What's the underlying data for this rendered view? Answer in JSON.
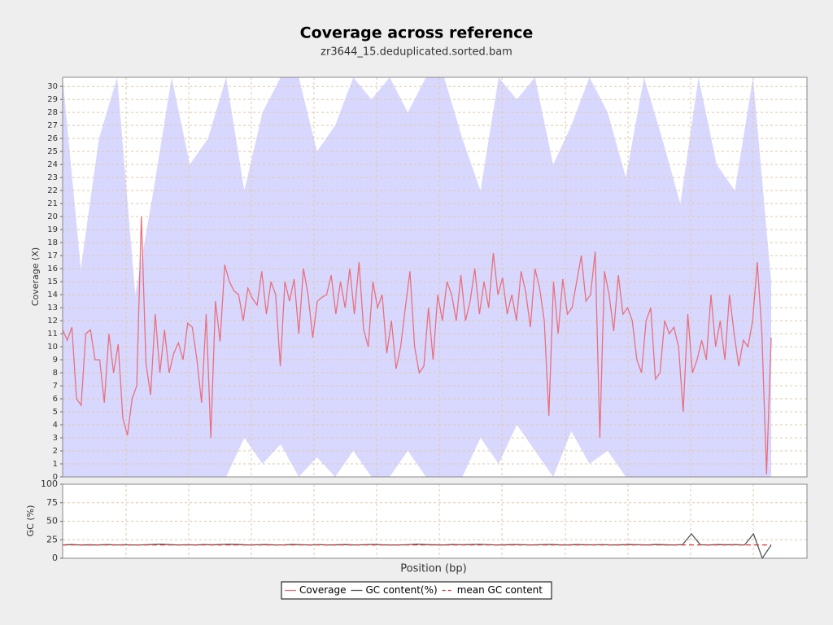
{
  "chart_data": [
    {
      "type": "line",
      "title": "Coverage across reference",
      "subtitle": "zr3644_15.deduplicated.sorted.bam",
      "ylabel": "Coverage (X)",
      "ylim": [
        0,
        30.7
      ],
      "yticks": [
        0,
        1,
        2,
        3,
        4,
        5,
        6,
        7,
        8,
        9,
        10,
        11,
        12,
        13,
        14,
        15,
        16,
        17,
        18,
        19,
        20,
        21,
        22,
        23,
        24,
        25,
        26,
        27,
        28,
        29,
        30
      ],
      "grid": true,
      "series": [
        {
          "name": "Coverage",
          "color": "#e8707e",
          "values": [
            11.3,
            10.5,
            11.5,
            6,
            5.5,
            11,
            11.3,
            9,
            9,
            5.7,
            11,
            8,
            10.2,
            4.5,
            3.2,
            6,
            7,
            20,
            8.7,
            6.3,
            12.5,
            8,
            11.3,
            8,
            9.5,
            10.3,
            9,
            11.8,
            11.5,
            9,
            5.7,
            12.5,
            3,
            13.5,
            10.4,
            16.3,
            15,
            14.3,
            14,
            12,
            14.5,
            13.7,
            13.2,
            15.8,
            12.5,
            15,
            14,
            8.5,
            15,
            13.5,
            15.2,
            11,
            16,
            14,
            10.7,
            13.5,
            13.8,
            14,
            15.5,
            12.5,
            15,
            13,
            16,
            12.5,
            16.5,
            11.3,
            10,
            15,
            13,
            14,
            9.5,
            12,
            8.3,
            10,
            13,
            15.8,
            10,
            8,
            8.5,
            13,
            9,
            14,
            12,
            15,
            14,
            12,
            15.5,
            12,
            13.5,
            16,
            12.5,
            15,
            13,
            17.2,
            14,
            15.3,
            12.5,
            14,
            12,
            15.8,
            14.2,
            11.5,
            16,
            14.5,
            12,
            4.7,
            15,
            11,
            15.2,
            12.5,
            13,
            15,
            17,
            13.5,
            14,
            17.3,
            3,
            15.8,
            14,
            11.2,
            15.5,
            12.5,
            13,
            12,
            9,
            8,
            12,
            13,
            7.5,
            8,
            12,
            11,
            11.5,
            10,
            5,
            12.5,
            8,
            9,
            10.5,
            9,
            14,
            10,
            12,
            9,
            14,
            11,
            8.5,
            10.5,
            10,
            12,
            16.5,
            11,
            0.2,
            10.7
          ]
        }
      ],
      "band": {
        "color": "#d8d8ff",
        "upper": [
          30.7,
          16,
          26,
          30.7,
          14,
          22,
          30.7,
          24,
          26,
          30.7,
          22,
          28,
          30.7,
          30.7,
          25,
          27,
          30.7,
          29,
          30.7,
          28,
          30.7,
          30.7,
          26,
          22,
          30.7,
          29,
          30.7,
          24,
          27,
          30.7,
          28,
          23,
          30.7,
          26,
          21,
          30.7,
          24,
          22,
          30.7,
          15
        ],
        "lower": [
          0,
          0,
          0,
          0,
          0,
          0,
          0,
          0,
          0,
          0,
          3,
          1,
          2.5,
          0,
          1.5,
          0,
          2,
          0,
          0,
          2,
          0,
          0,
          0,
          3,
          1,
          4,
          2,
          0,
          3.5,
          1,
          2,
          0,
          0,
          0,
          0,
          0,
          0,
          0,
          0,
          0
        ]
      }
    },
    {
      "type": "line",
      "ylabel": "GC (%)",
      "xlabel": "Position (bp)",
      "ylim": [
        0,
        100
      ],
      "yticks": [
        0,
        25,
        50,
        75,
        100
      ],
      "grid": true,
      "series": [
        {
          "name": "GC content(%)",
          "color": "#555555",
          "values": [
            18,
            18.5,
            18,
            18.2,
            18,
            18.5,
            18,
            18.3,
            18,
            18.1,
            18.5,
            19,
            18.5,
            18,
            18.3,
            18,
            18.5,
            18.2,
            18.7,
            18.9,
            18.5,
            18,
            18.3,
            18.5,
            18,
            18.1,
            18.6,
            18.3,
            18,
            18.4,
            18,
            18.2,
            18.5,
            18,
            18.3,
            18.7,
            18.2,
            18,
            18,
            18.4,
            19,
            18.5,
            18.2,
            18,
            18.6,
            18.3,
            18.5,
            18.8,
            18.4,
            18,
            18.2,
            18.5,
            18.3,
            18,
            18.4,
            18.7,
            18.2,
            18,
            18.5,
            18.3,
            18.1,
            18.4,
            18,
            18.2,
            18.5,
            18.3,
            18,
            18.6,
            18.2,
            18,
            18.4,
            33,
            18.3,
            18,
            18.5,
            18.2,
            18.4,
            18,
            33,
            0,
            18
          ]
        },
        {
          "name": "mean GC content",
          "color": "#e03030",
          "values": [
            18
          ]
        }
      ]
    }
  ]
}
